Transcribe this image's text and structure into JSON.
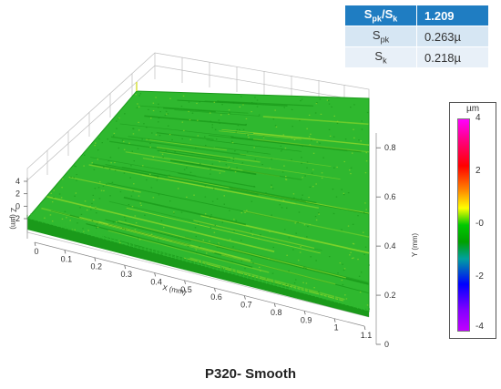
{
  "params": {
    "rows": [
      {
        "name_main": "S",
        "name_sub": "pk",
        "name_sep": "/",
        "name_main2": "S",
        "name_sub2": "k",
        "value": "1.209"
      },
      {
        "name_main": "S",
        "name_sub": "pk",
        "value": "0.263µ"
      },
      {
        "name_main": "S",
        "name_sub": "k",
        "value": "0.218µ"
      }
    ]
  },
  "colorbar": {
    "unit": "µm",
    "ticks": [
      "4",
      "2",
      "-0",
      "-2",
      "-4"
    ]
  },
  "axes": {
    "x_label": "X (mm)",
    "y_label": "Y (mm)",
    "z_label": "Z (µm)",
    "x_ticks": [
      "0",
      "0.1",
      "0.2",
      "0.3",
      "0.4",
      "0.5",
      "0.6",
      "0.7",
      "0.8",
      "0.9",
      "1",
      "1.1"
    ],
    "y_ticks": [
      "0",
      "0.2",
      "0.4",
      "0.6",
      "0.8"
    ],
    "z_ticks": [
      "4",
      "2",
      "0",
      "-2"
    ]
  },
  "caption": "P320- Smooth",
  "colors": {
    "surface_main": "#2fb82f",
    "surface_light": "#8ad62a",
    "surface_dark": "#1a9a1a",
    "header_blue": "#1f7dc2"
  }
}
